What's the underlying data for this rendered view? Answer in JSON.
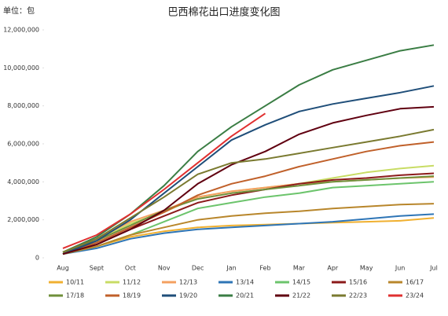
{
  "chart_data": {
    "type": "line",
    "title": "巴西棉花出口进度变化图",
    "y_unit": "单位：包",
    "categories": [
      "Aug",
      "Sept",
      "Oct",
      "Nov",
      "Dec",
      "Jan",
      "Feb",
      "Mar",
      "Apr",
      "May",
      "Jun",
      "Jul"
    ],
    "ylim": [
      0,
      12000000
    ],
    "yticks": [
      0,
      {
        "value": 2000000,
        "label": "2,000,000"
      },
      {
        "value": 4000000,
        "label": "4,000,000"
      },
      {
        "value": 6000000,
        "label": "6,000,000"
      },
      {
        "value": 8000000,
        "label": "8,000,000"
      },
      {
        "value": 10000000,
        "label": "10,000,000"
      },
      {
        "value": 12000000,
        "label": "12,000,000"
      }
    ],
    "series": [
      {
        "name": "10/11",
        "color": "#f0b030",
        "values": [
          200000,
          600000,
          1100000,
          1400000,
          1600000,
          1700000,
          1750000,
          1800000,
          1850000,
          1900000,
          1950000,
          2100000
        ]
      },
      {
        "name": "11/12",
        "color": "#c8dc64",
        "values": [
          300000,
          900000,
          1800000,
          2400000,
          3200000,
          3500000,
          3700000,
          3900000,
          4200000,
          4500000,
          4700000,
          4850000
        ]
      },
      {
        "name": "12/13",
        "color": "#f4a060",
        "values": [
          300000,
          1000000,
          1900000,
          2500000,
          3200000,
          3500000,
          3700000,
          3900000,
          4000000,
          4100000,
          4200000,
          4250000
        ]
      },
      {
        "name": "13/14",
        "color": "#2e75b6",
        "values": [
          200000,
          500000,
          1000000,
          1300000,
          1500000,
          1600000,
          1700000,
          1800000,
          1900000,
          2050000,
          2200000,
          2300000
        ]
      },
      {
        "name": "14/15",
        "color": "#6cc46c",
        "values": [
          200000,
          600000,
          1200000,
          1900000,
          2600000,
          2900000,
          3200000,
          3400000,
          3700000,
          3800000,
          3900000,
          4000000
        ]
      },
      {
        "name": "15/16",
        "color": "#8b1a1a",
        "values": [
          200000,
          700000,
          1500000,
          2200000,
          2900000,
          3300000,
          3600000,
          3900000,
          4100000,
          4200000,
          4350000,
          4450000
        ]
      },
      {
        "name": "16/17",
        "color": "#b8862b",
        "values": [
          200000,
          600000,
          1200000,
          1600000,
          2000000,
          2200000,
          2350000,
          2450000,
          2600000,
          2700000,
          2800000,
          2850000
        ]
      },
      {
        "name": "17/18",
        "color": "#6f8f3a",
        "values": [
          300000,
          900000,
          1700000,
          2500000,
          3100000,
          3400000,
          3600000,
          3800000,
          4000000,
          4100000,
          4200000,
          4300000
        ]
      },
      {
        "name": "18/19",
        "color": "#c0602a",
        "values": [
          200000,
          800000,
          1600000,
          2400000,
          3300000,
          3900000,
          4300000,
          4800000,
          5200000,
          5600000,
          5900000,
          6100000
        ]
      },
      {
        "name": "19/20",
        "color": "#1f4e79",
        "values": [
          200000,
          900000,
          2000000,
          3400000,
          4800000,
          6200000,
          7000000,
          7700000,
          8100000,
          8400000,
          8700000,
          9050000
        ]
      },
      {
        "name": "20/21",
        "color": "#3a7d44",
        "values": [
          300000,
          1100000,
          2300000,
          3800000,
          5600000,
          6900000,
          8000000,
          9100000,
          9900000,
          10400000,
          10900000,
          11200000
        ]
      },
      {
        "name": "21/22",
        "color": "#600010",
        "values": [
          200000,
          700000,
          1500000,
          2500000,
          3900000,
          4900000,
          5600000,
          6500000,
          7100000,
          7500000,
          7850000,
          7950000
        ]
      },
      {
        "name": "22/23",
        "color": "#7a7a30",
        "values": [
          300000,
          1000000,
          2100000,
          3200000,
          4400000,
          5000000,
          5200000,
          5500000,
          5800000,
          6100000,
          6400000,
          6750000
        ]
      },
      {
        "name": "23/24",
        "color": "#e03030",
        "values": [
          500000,
          1200000,
          2300000,
          3600000,
          5000000,
          6400000,
          7600000,
          null,
          null,
          null,
          null,
          null
        ]
      }
    ]
  }
}
